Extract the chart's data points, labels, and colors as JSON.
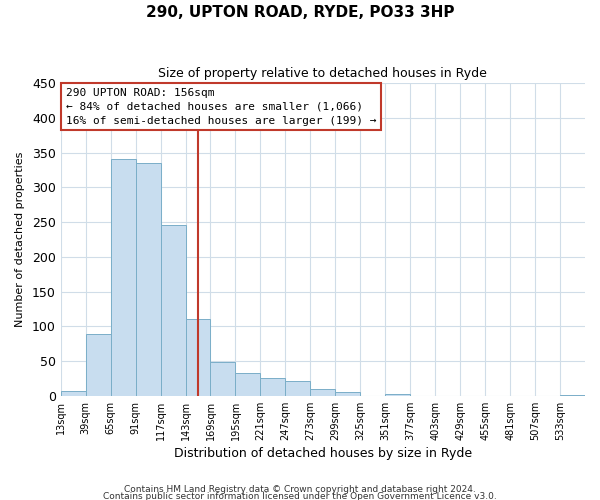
{
  "title": "290, UPTON ROAD, RYDE, PO33 3HP",
  "subtitle": "Size of property relative to detached houses in Ryde",
  "xlabel": "Distribution of detached houses by size in Ryde",
  "ylabel": "Number of detached properties",
  "bar_edges": [
    13,
    39,
    65,
    91,
    117,
    143,
    169,
    195,
    221,
    247,
    273,
    299,
    325,
    351,
    377,
    403,
    429,
    455,
    481,
    507,
    533,
    559
  ],
  "bar_heights": [
    7,
    89,
    341,
    335,
    246,
    110,
    49,
    33,
    25,
    21,
    10,
    5,
    0,
    2,
    0,
    0,
    0,
    0,
    0,
    0,
    1
  ],
  "bar_color": "#c8ddef",
  "bar_edgecolor": "#7aaec8",
  "property_size": 156,
  "vline_color": "#c0392b",
  "annotation_line1": "290 UPTON ROAD: 156sqm",
  "annotation_line2": "← 84% of detached houses are smaller (1,066)",
  "annotation_line3": "16% of semi-detached houses are larger (199) →",
  "annotation_box_edgecolor": "#c0392b",
  "ylim": [
    0,
    450
  ],
  "yticks": [
    0,
    50,
    100,
    150,
    200,
    250,
    300,
    350,
    400,
    450
  ],
  "footer1": "Contains HM Land Registry data © Crown copyright and database right 2024.",
  "footer2": "Contains public sector information licensed under the Open Government Licence v3.0.",
  "background_color": "#ffffff",
  "grid_color": "#d0dde8"
}
